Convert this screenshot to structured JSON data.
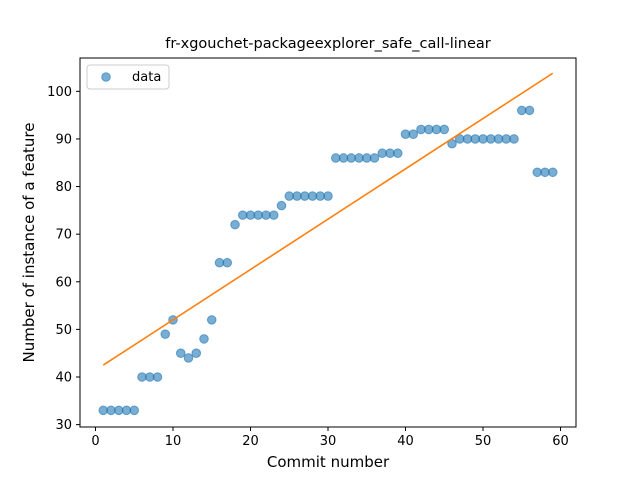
{
  "chart_data": {
    "type": "scatter",
    "title": "fr-xgouchet-packageexplorer_safe_call-linear",
    "xlabel": "Commit number",
    "ylabel": "Number of instance of a feature",
    "xlim": [
      -2,
      62
    ],
    "ylim": [
      29.5,
      107
    ],
    "xticks": [
      0,
      10,
      20,
      30,
      40,
      50,
      60
    ],
    "yticks": [
      30,
      40,
      50,
      60,
      70,
      80,
      90,
      100
    ],
    "grid": false,
    "legend": {
      "location": "top-left",
      "entries": [
        "data"
      ]
    },
    "colors": {
      "points": "#1f77b4",
      "fit": "#ff7f0e"
    },
    "series": [
      {
        "name": "data",
        "kind": "scatter",
        "x": [
          1,
          2,
          3,
          4,
          5,
          6,
          7,
          8,
          9,
          10,
          11,
          12,
          13,
          14,
          15,
          16,
          17,
          18,
          19,
          20,
          21,
          22,
          23,
          24,
          25,
          26,
          27,
          28,
          29,
          30,
          31,
          32,
          33,
          34,
          35,
          36,
          37,
          38,
          39,
          40,
          41,
          42,
          43,
          44,
          45,
          46,
          47,
          48,
          49,
          50,
          51,
          52,
          53,
          54,
          55,
          56,
          57,
          58,
          59
        ],
        "y": [
          33,
          33,
          33,
          33,
          33,
          40,
          40,
          40,
          49,
          52,
          45,
          44,
          45,
          48,
          52,
          64,
          64,
          72,
          74,
          74,
          74,
          74,
          74,
          76,
          78,
          78,
          78,
          78,
          78,
          78,
          86,
          86,
          86,
          86,
          86,
          86,
          87,
          87,
          87,
          91,
          91,
          92,
          92,
          92,
          92,
          89,
          90,
          90,
          90,
          90,
          90,
          90,
          90,
          90,
          96,
          96,
          83,
          83,
          83
        ]
      },
      {
        "kind": "line",
        "x": [
          1,
          59
        ],
        "y": [
          42.5,
          103.8
        ]
      }
    ]
  }
}
